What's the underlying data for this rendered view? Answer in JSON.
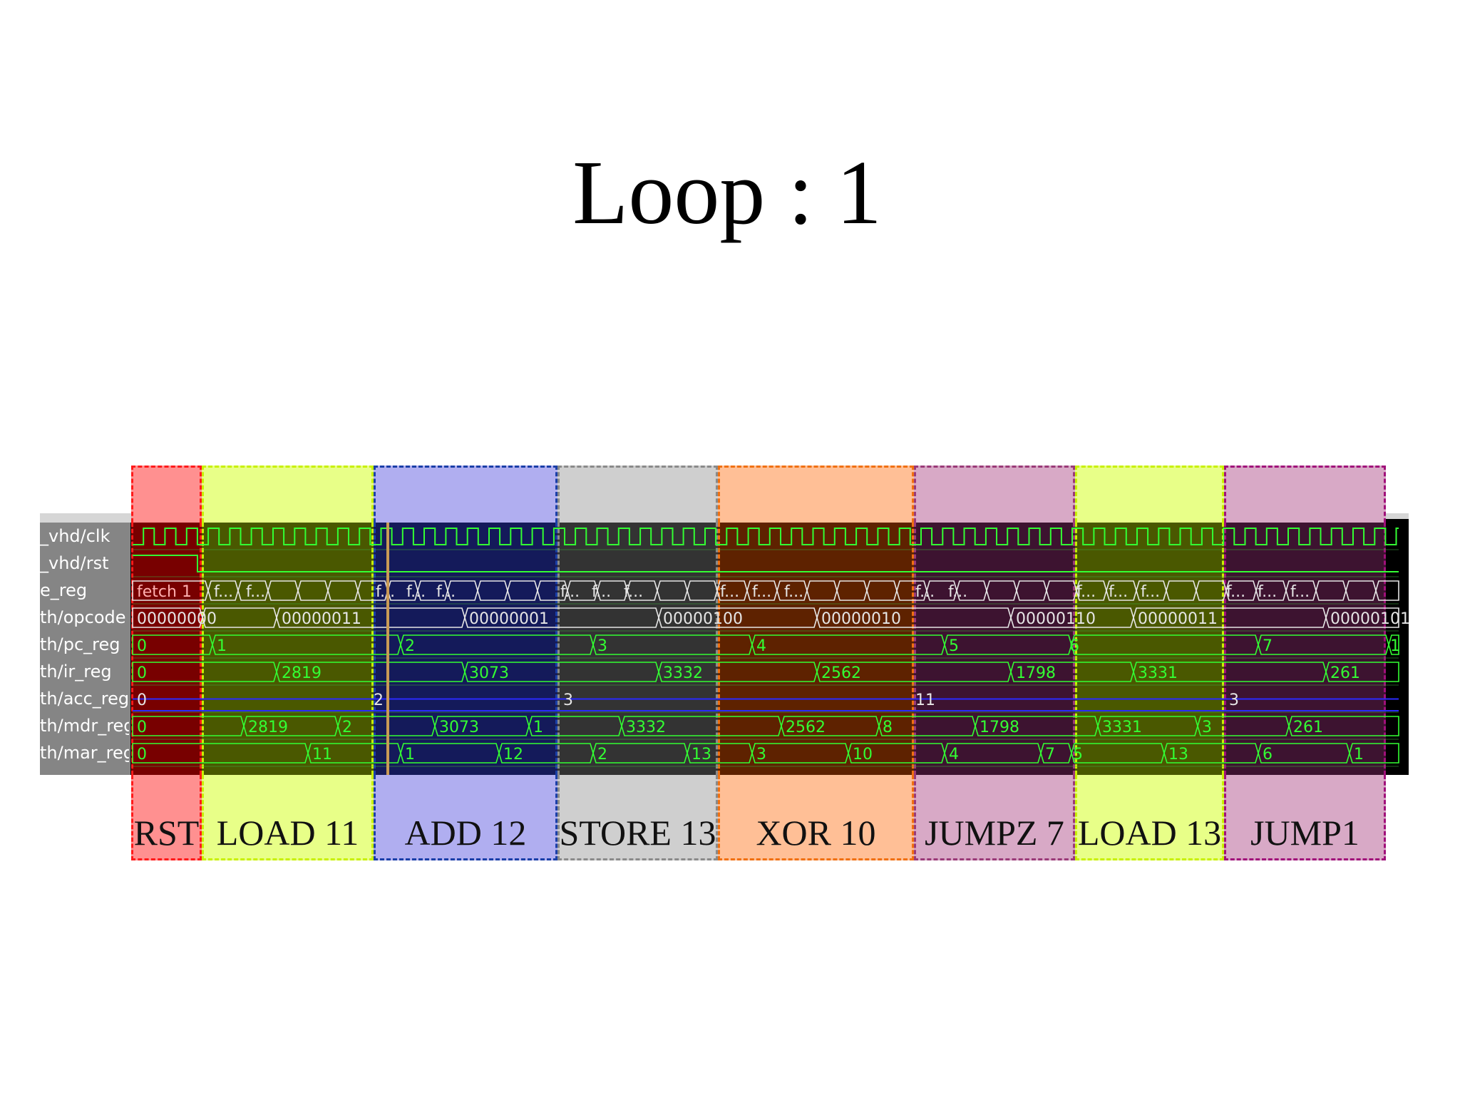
{
  "slide": {
    "title": "Loop : 1"
  },
  "signals": [
    {
      "label": "_vhd/clk"
    },
    {
      "label": "_vhd/rst"
    },
    {
      "label": "e_reg"
    },
    {
      "label": "th/opcode"
    },
    {
      "label": "th/pc_reg"
    },
    {
      "label": "th/ir_reg"
    },
    {
      "label": "th/acc_reg"
    },
    {
      "label": "th/mdr_reg"
    },
    {
      "label": "th/mar_reg"
    }
  ],
  "columns": [
    {
      "name": "RST",
      "border_color": "#ff1a1a",
      "fill_color": "#ff9090",
      "wave_tint": "#780000"
    },
    {
      "name": "LOAD 11",
      "border_color": "#c8f000",
      "fill_color": "#e8ff88",
      "wave_tint": "#4a5800"
    },
    {
      "name": "ADD 12",
      "border_color": "#1a3fa8",
      "fill_color": "#b0aef0",
      "wave_tint": "#141a5a"
    },
    {
      "name": "STORE 13",
      "border_color": "#8a8a8a",
      "fill_color": "#cfcfcf",
      "wave_tint": "#333333"
    },
    {
      "name": "XOR 10",
      "border_color": "#f07010",
      "fill_color": "#ffbf96",
      "wave_tint": "#5e2200"
    },
    {
      "name": "JUMPZ 7",
      "border_color": "#9a3a78",
      "fill_color": "#d8a9c6",
      "wave_tint": "#3d1330"
    },
    {
      "name": "LOAD 13",
      "border_color": "#c8f000",
      "fill_color": "#e8ff88",
      "wave_tint": "#4a5800"
    },
    {
      "name": "JUMP1",
      "border_color": "#a0107a",
      "fill_color": "#d8a9c6",
      "wave_tint": "#3d1330"
    }
  ],
  "bus_values": {
    "state": [
      "fetch_1",
      "f...",
      "f...",
      "f...",
      "f...",
      "f...",
      "f...",
      "f...",
      "f...",
      "f...",
      "f...",
      "f...",
      "f...",
      "f...",
      "f...",
      "f...",
      "f...",
      "f...",
      "f...",
      "f..."
    ],
    "opcode": [
      "00000000",
      "00000011",
      "00000001",
      "00000100",
      "00000010",
      "00000110",
      "00000011",
      "00000101"
    ],
    "pc": [
      "0",
      "1",
      "2",
      "3",
      "4",
      "5",
      "6",
      "7",
      "1"
    ],
    "ir": [
      "0",
      "2819",
      "3073",
      "3332",
      "2562",
      "1798",
      "3331",
      "261"
    ],
    "acc": [
      "0",
      "2",
      "3",
      "11",
      "3"
    ],
    "mdr": [
      "0",
      "2819",
      "2",
      "3073",
      "1",
      "3332",
      "2562",
      "8",
      "1798",
      "3331",
      "3",
      "261"
    ],
    "mar": [
      "0",
      "11",
      "1",
      "12",
      "2",
      "13",
      "3",
      "10",
      "4",
      "7",
      "5",
      "13",
      "6",
      "1"
    ]
  },
  "colors": {
    "signal_green": "#33ff33",
    "signal_white": "#e6e6e6",
    "acc_line": "#2a2aff",
    "marker": "#c99a55"
  }
}
